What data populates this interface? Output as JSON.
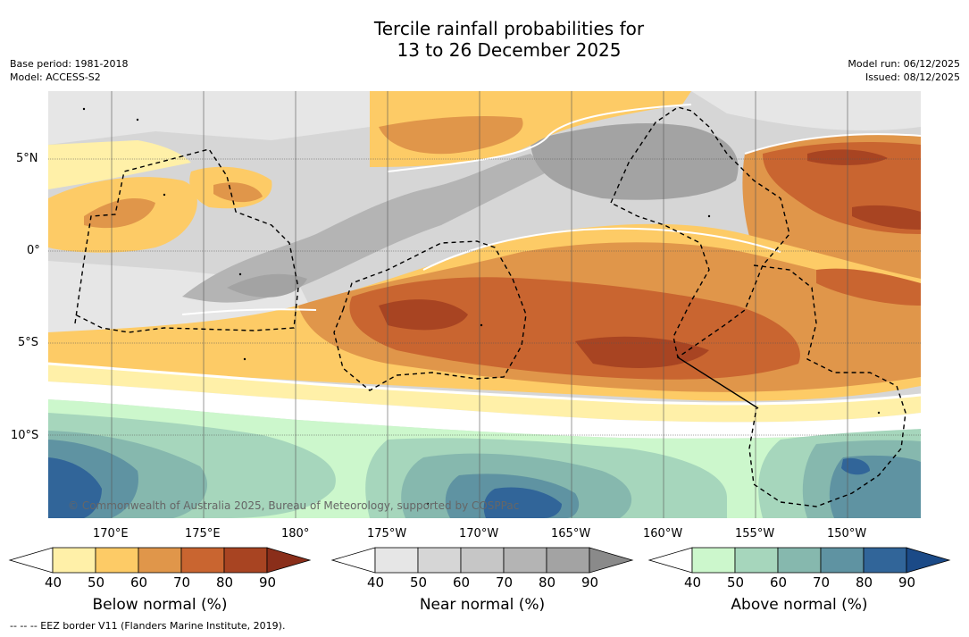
{
  "title": {
    "line1": "Tercile rainfall probabilities for",
    "line2": "13 to 26 December 2025"
  },
  "meta": {
    "base_period": "Base period: 1981-2018",
    "model": "Model: ACCESS-S2",
    "model_run": "Model run: 06/12/2025",
    "issued": "Issued: 08/12/2025"
  },
  "map": {
    "lat_labels": [
      "5°N",
      "0°",
      "5°S",
      "10°S"
    ],
    "lon_labels": [
      "170°E",
      "175°E",
      "180°",
      "175°W",
      "170°W",
      "165°W",
      "160°W",
      "155°W",
      "150°W"
    ],
    "copyright": "© Commonwealth of Australia 2025, Bureau of Meteorology, supported by COSPPac"
  },
  "colorbars": [
    {
      "name": "below",
      "title": "Below normal (%)",
      "ticks": [
        "40",
        "50",
        "60",
        "70",
        "80",
        "90"
      ],
      "colors": [
        "#fff0a8",
        "#fdcb66",
        "#e0964a",
        "#c96530",
        "#a84422",
        "#8a2e1a"
      ]
    },
    {
      "name": "near",
      "title": "Near normal (%)",
      "ticks": [
        "40",
        "50",
        "60",
        "70",
        "80",
        "90"
      ],
      "colors": [
        "#e6e6e6",
        "#d6d6d6",
        "#c6c6c6",
        "#b4b4b4",
        "#a3a3a3",
        "#8a8a8a"
      ]
    },
    {
      "name": "above",
      "title": "Above normal (%)",
      "ticks": [
        "40",
        "50",
        "60",
        "70",
        "80",
        "90"
      ],
      "colors": [
        "#ccf7cc",
        "#a6d6bc",
        "#86b8ae",
        "#5f93a2",
        "#316599",
        "#1b4a87"
      ]
    }
  ],
  "footer": "--  --  -- EEZ border V11 (Flanders Marine Institute, 2019)."
}
